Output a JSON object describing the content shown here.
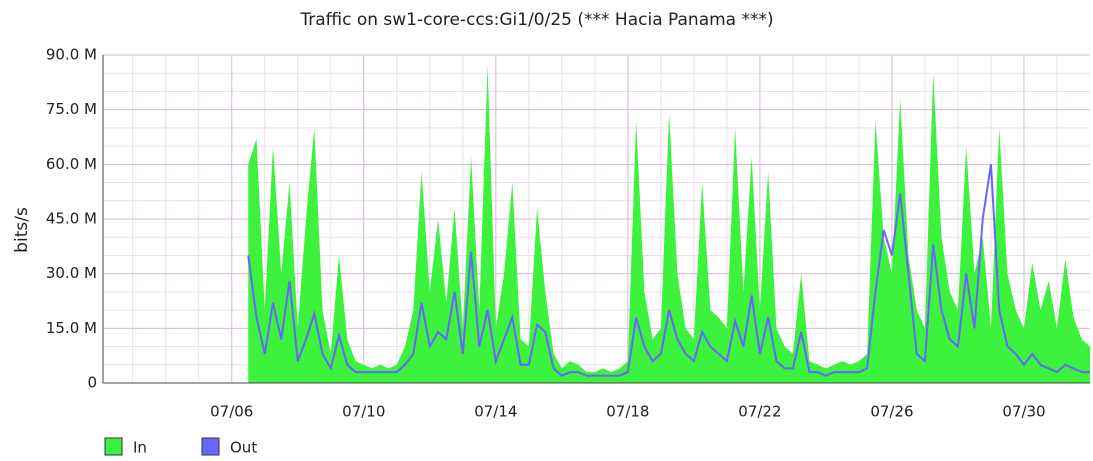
{
  "chart_data": {
    "type": "area",
    "title": "Traffic on sw1-core-ccs:Gi1/0/25 (*** Hacia Panama ***)",
    "y_label": "bits/s",
    "x": [
      6.5,
      6.75,
      7,
      7.25,
      7.5,
      7.75,
      8,
      8.25,
      8.5,
      8.75,
      9,
      9.25,
      9.5,
      9.75,
      10,
      10.25,
      10.5,
      10.75,
      11,
      11.25,
      11.5,
      11.75,
      12,
      12.25,
      12.5,
      12.75,
      13,
      13.25,
      13.5,
      13.75,
      14,
      14.25,
      14.5,
      14.75,
      15,
      15.25,
      15.5,
      15.75,
      16,
      16.25,
      16.5,
      16.75,
      17,
      17.25,
      17.5,
      17.75,
      18,
      18.25,
      18.5,
      18.75,
      19,
      19.25,
      19.5,
      19.75,
      20,
      20.25,
      20.5,
      20.75,
      21,
      21.25,
      21.5,
      21.75,
      22,
      22.25,
      22.5,
      22.75,
      23,
      23.25,
      23.5,
      23.75,
      24,
      24.25,
      24.5,
      24.75,
      25,
      25.25,
      25.5,
      25.75,
      26,
      26.25,
      26.5,
      26.75,
      27,
      27.25,
      27.5,
      27.75,
      28,
      28.25,
      28.5,
      28.75,
      29,
      29.25,
      29.5,
      29.75,
      30,
      30.25,
      30.5,
      30.75,
      31,
      31.25,
      31.5,
      31.75,
      32
    ],
    "series": [
      {
        "name": "In",
        "color": "#3cf23c",
        "values": [
          60000000.0,
          67000000.0,
          20000000.0,
          65000000.0,
          30000000.0,
          55000000.0,
          15000000.0,
          45000000.0,
          70000000.0,
          20000000.0,
          8000000.0,
          35000000.0,
          12000000.0,
          6000000.0,
          5000000.0,
          4000000.0,
          5000000.0,
          4000000.0,
          5000000.0,
          10000000.0,
          20000000.0,
          58000000.0,
          25000000.0,
          45000000.0,
          22000000.0,
          48000000.0,
          15000000.0,
          62000000.0,
          20000000.0,
          87000000.0,
          15000000.0,
          30000000.0,
          55000000.0,
          12000000.0,
          10000000.0,
          48000000.0,
          25000000.0,
          8000000.0,
          4000000.0,
          6000000.0,
          5000000.0,
          3000000.0,
          3000000.0,
          4000000.0,
          3000000.0,
          4000000.0,
          6000000.0,
          72000000.0,
          25000000.0,
          12000000.0,
          15000000.0,
          74000000.0,
          30000000.0,
          15000000.0,
          12000000.0,
          55000000.0,
          20000000.0,
          18000000.0,
          15000000.0,
          70000000.0,
          25000000.0,
          62000000.0,
          20000000.0,
          58000000.0,
          15000000.0,
          10000000.0,
          8000000.0,
          30000000.0,
          6000000.0,
          5000000.0,
          4000000.0,
          5000000.0,
          6000000.0,
          5000000.0,
          6000000.0,
          8000000.0,
          72000000.0,
          40000000.0,
          30000000.0,
          78000000.0,
          35000000.0,
          20000000.0,
          15000000.0,
          85000000.0,
          40000000.0,
          25000000.0,
          20000000.0,
          65000000.0,
          30000000.0,
          40000000.0,
          15000000.0,
          70000000.0,
          30000000.0,
          20000000.0,
          15000000.0,
          33000000.0,
          20000000.0,
          28000000.0,
          15000000.0,
          34000000.0,
          18000000.0,
          12000000.0,
          10000000.0
        ]
      },
      {
        "name": "Out",
        "color": "#6666ff",
        "values": [
          35000000.0,
          18000000.0,
          8000000.0,
          22000000.0,
          12000000.0,
          28000000.0,
          6000000.0,
          12000000.0,
          19000000.0,
          8000000.0,
          4000000.0,
          13000000.0,
          5000000.0,
          3000000.0,
          3000000.0,
          3000000.0,
          3000000.0,
          3000000.0,
          3000000.0,
          5000000.0,
          8000000.0,
          22000000.0,
          10000000.0,
          14000000.0,
          12000000.0,
          25000000.0,
          8000000.0,
          36000000.0,
          10000000.0,
          20000000.0,
          6000000.0,
          12000000.0,
          18000000.0,
          5000000.0,
          5000000.0,
          16000000.0,
          14000000.0,
          4000000.0,
          2000000.0,
          3000000.0,
          3000000.0,
          2000000.0,
          2000000.0,
          2000000.0,
          2000000.0,
          2000000.0,
          3000000.0,
          18000000.0,
          10000000.0,
          6000000.0,
          8000000.0,
          20000000.0,
          12000000.0,
          8000000.0,
          6000000.0,
          14000000.0,
          10000000.0,
          8000000.0,
          6000000.0,
          17000000.0,
          10000000.0,
          24000000.0,
          8000000.0,
          18000000.0,
          6000000.0,
          4000000.0,
          4000000.0,
          14000000.0,
          3000000.0,
          3000000.0,
          2000000.0,
          3000000.0,
          3000000.0,
          3000000.0,
          3000000.0,
          4000000.0,
          25000000.0,
          42000000.0,
          35000000.0,
          52000000.0,
          30000000.0,
          8000000.0,
          6000000.0,
          38000000.0,
          20000000.0,
          12000000.0,
          10000000.0,
          30000000.0,
          15000000.0,
          45000000.0,
          60000000.0,
          20000000.0,
          10000000.0,
          8000000.0,
          5000000.0,
          8000000.0,
          5000000.0,
          4000000.0,
          3000000.0,
          5000000.0,
          4000000.0,
          3000000.0,
          3000000.0
        ]
      }
    ],
    "xlim": [
      2.1,
      32.0
    ],
    "xticks": [
      {
        "value": 6,
        "label": "07/06"
      },
      {
        "value": 10,
        "label": "07/10"
      },
      {
        "value": 14,
        "label": "07/14"
      },
      {
        "value": 18,
        "label": "07/18"
      },
      {
        "value": 22,
        "label": "07/22"
      },
      {
        "value": 26,
        "label": "07/26"
      },
      {
        "value": 30,
        "label": "07/30"
      }
    ],
    "x_minor_ticks": [
      3,
      4,
      5,
      7,
      8,
      9,
      11,
      12,
      13,
      15,
      16,
      17,
      19,
      20,
      21,
      23,
      24,
      25,
      27,
      28,
      29,
      31
    ],
    "ylim": [
      0,
      90000000.0
    ],
    "yticks": [
      0,
      {
        "value": 15000000.0,
        "label": "15.0 M"
      },
      {
        "value": 30000000.0,
        "label": "30.0 M"
      },
      {
        "value": 45000000.0,
        "label": "45.0 M"
      },
      {
        "value": 60000000.0,
        "label": "60.0 M"
      },
      {
        "value": 75000000.0,
        "label": "75.0 M"
      },
      {
        "value": 90000000.0,
        "label": "90.0 M"
      }
    ],
    "y_minor_ticks": [
      5000000.0,
      10000000.0,
      20000000.0,
      25000000.0,
      35000000.0,
      40000000.0,
      50000000.0,
      55000000.0,
      65000000.0,
      70000000.0,
      80000000.0,
      85000000.0
    ],
    "grid": true,
    "legend": "bottom-left"
  }
}
